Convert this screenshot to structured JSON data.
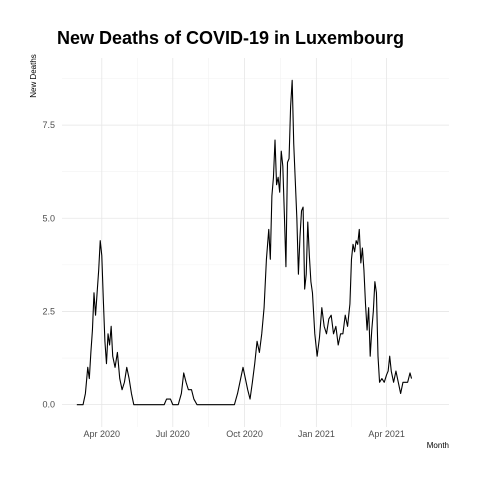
{
  "chart_data": {
    "type": "line",
    "title": "New Deaths of COVID-19 in Luxembourg",
    "xlabel": "Month",
    "ylabel": "New Deaths",
    "xlim": [
      "2020-02-10",
      "2021-06-20"
    ],
    "ylim": [
      -0.6,
      9.3
    ],
    "grid": true,
    "y_ticks": [
      {
        "value": 0.0,
        "label": "0.0"
      },
      {
        "value": 2.5,
        "label": "2.5"
      },
      {
        "value": 5.0,
        "label": "5.0"
      },
      {
        "value": 7.5,
        "label": "7.5"
      }
    ],
    "x_ticks": [
      {
        "date": "2020-04-01",
        "label": "Apr 2020"
      },
      {
        "date": "2020-07-01",
        "label": "Jul 2020"
      },
      {
        "date": "2020-10-01",
        "label": "Oct 2020"
      },
      {
        "date": "2021-01-01",
        "label": "Jan 2021"
      },
      {
        "date": "2021-04-01",
        "label": "Apr 2021"
      }
    ],
    "series": [
      {
        "points": [
          [
            "2020-02-29",
            0
          ],
          [
            "2020-03-08",
            0
          ],
          [
            "2020-03-11",
            0.3
          ],
          [
            "2020-03-14",
            1.0
          ],
          [
            "2020-03-16",
            0.7
          ],
          [
            "2020-03-18",
            1.4
          ],
          [
            "2020-03-20",
            2.0
          ],
          [
            "2020-03-22",
            3.0
          ],
          [
            "2020-03-24",
            2.4
          ],
          [
            "2020-03-26",
            3.0
          ],
          [
            "2020-03-28",
            3.6
          ],
          [
            "2020-03-30",
            4.4
          ],
          [
            "2020-04-01",
            4.0
          ],
          [
            "2020-04-03",
            2.8
          ],
          [
            "2020-04-05",
            1.7
          ],
          [
            "2020-04-07",
            1.1
          ],
          [
            "2020-04-09",
            1.9
          ],
          [
            "2020-04-11",
            1.6
          ],
          [
            "2020-04-13",
            2.1
          ],
          [
            "2020-04-15",
            1.3
          ],
          [
            "2020-04-18",
            1.0
          ],
          [
            "2020-04-21",
            1.4
          ],
          [
            "2020-04-24",
            0.7
          ],
          [
            "2020-04-27",
            0.4
          ],
          [
            "2020-04-30",
            0.6
          ],
          [
            "2020-05-03",
            1.0
          ],
          [
            "2020-05-06",
            0.7
          ],
          [
            "2020-05-09",
            0.3
          ],
          [
            "2020-05-12",
            0.0
          ],
          [
            "2020-05-25",
            0
          ],
          [
            "2020-06-10",
            0
          ],
          [
            "2020-06-20",
            0
          ],
          [
            "2020-06-23",
            0.15
          ],
          [
            "2020-06-28",
            0.15
          ],
          [
            "2020-07-01",
            0
          ],
          [
            "2020-07-08",
            0
          ],
          [
            "2020-07-12",
            0.3
          ],
          [
            "2020-07-15",
            0.85
          ],
          [
            "2020-07-18",
            0.6
          ],
          [
            "2020-07-21",
            0.4
          ],
          [
            "2020-07-25",
            0.4
          ],
          [
            "2020-07-28",
            0.15
          ],
          [
            "2020-08-01",
            0
          ],
          [
            "2020-08-20",
            0
          ],
          [
            "2020-09-10",
            0
          ],
          [
            "2020-09-18",
            0
          ],
          [
            "2020-09-22",
            0.3
          ],
          [
            "2020-09-26",
            0.7
          ],
          [
            "2020-09-29",
            1.0
          ],
          [
            "2020-10-02",
            0.7
          ],
          [
            "2020-10-05",
            0.4
          ],
          [
            "2020-10-08",
            0.15
          ],
          [
            "2020-10-11",
            0.6
          ],
          [
            "2020-10-14",
            1.1
          ],
          [
            "2020-10-17",
            1.7
          ],
          [
            "2020-10-20",
            1.4
          ],
          [
            "2020-10-23",
            1.9
          ],
          [
            "2020-10-26",
            2.6
          ],
          [
            "2020-10-29",
            3.9
          ],
          [
            "2020-11-01",
            4.7
          ],
          [
            "2020-11-03",
            3.9
          ],
          [
            "2020-11-05",
            5.6
          ],
          [
            "2020-11-07",
            6.1
          ],
          [
            "2020-11-09",
            7.1
          ],
          [
            "2020-11-11",
            5.9
          ],
          [
            "2020-11-13",
            6.1
          ],
          [
            "2020-11-15",
            5.7
          ],
          [
            "2020-11-17",
            6.8
          ],
          [
            "2020-11-19",
            6.4
          ],
          [
            "2020-11-21",
            5.1
          ],
          [
            "2020-11-23",
            3.7
          ],
          [
            "2020-11-25",
            6.5
          ],
          [
            "2020-11-27",
            6.6
          ],
          [
            "2020-11-29",
            8.0
          ],
          [
            "2020-12-01",
            8.7
          ],
          [
            "2020-12-03",
            7.0
          ],
          [
            "2020-12-05",
            6.0
          ],
          [
            "2020-12-07",
            5.0
          ],
          [
            "2020-12-09",
            3.5
          ],
          [
            "2020-12-11",
            4.5
          ],
          [
            "2020-12-13",
            5.2
          ],
          [
            "2020-12-15",
            5.3
          ],
          [
            "2020-12-17",
            3.1
          ],
          [
            "2020-12-19",
            3.5
          ],
          [
            "2020-12-21",
            4.9
          ],
          [
            "2020-12-23",
            4.0
          ],
          [
            "2020-12-25",
            3.3
          ],
          [
            "2020-12-27",
            3.0
          ],
          [
            "2020-12-30",
            1.9
          ],
          [
            "2021-01-02",
            1.3
          ],
          [
            "2021-01-05",
            1.8
          ],
          [
            "2021-01-08",
            2.6
          ],
          [
            "2021-01-11",
            2.1
          ],
          [
            "2021-01-14",
            1.9
          ],
          [
            "2021-01-17",
            2.3
          ],
          [
            "2021-01-20",
            2.4
          ],
          [
            "2021-01-23",
            1.9
          ],
          [
            "2021-01-26",
            2.1
          ],
          [
            "2021-01-29",
            1.6
          ],
          [
            "2021-02-01",
            1.9
          ],
          [
            "2021-02-04",
            1.9
          ],
          [
            "2021-02-07",
            2.4
          ],
          [
            "2021-02-10",
            2.1
          ],
          [
            "2021-02-13",
            2.7
          ],
          [
            "2021-02-15",
            3.9
          ],
          [
            "2021-02-17",
            4.3
          ],
          [
            "2021-02-19",
            4.1
          ],
          [
            "2021-02-21",
            4.4
          ],
          [
            "2021-02-23",
            4.3
          ],
          [
            "2021-02-25",
            4.7
          ],
          [
            "2021-02-27",
            3.8
          ],
          [
            "2021-03-01",
            4.2
          ],
          [
            "2021-03-03",
            3.6
          ],
          [
            "2021-03-05",
            2.7
          ],
          [
            "2021-03-07",
            2.0
          ],
          [
            "2021-03-09",
            2.6
          ],
          [
            "2021-03-11",
            1.3
          ],
          [
            "2021-03-13",
            2.0
          ],
          [
            "2021-03-15",
            2.5
          ],
          [
            "2021-03-17",
            3.3
          ],
          [
            "2021-03-19",
            3.0
          ],
          [
            "2021-03-21",
            1.3
          ],
          [
            "2021-03-23",
            0.6
          ],
          [
            "2021-03-26",
            0.7
          ],
          [
            "2021-03-29",
            0.6
          ],
          [
            "2021-04-01",
            0.8
          ],
          [
            "2021-04-03",
            0.9
          ],
          [
            "2021-04-05",
            1.3
          ],
          [
            "2021-04-07",
            0.9
          ],
          [
            "2021-04-10",
            0.6
          ],
          [
            "2021-04-13",
            0.9
          ],
          [
            "2021-04-16",
            0.6
          ],
          [
            "2021-04-19",
            0.3
          ],
          [
            "2021-04-22",
            0.6
          ],
          [
            "2021-04-25",
            0.6
          ],
          [
            "2021-04-28",
            0.6
          ],
          [
            "2021-05-01",
            0.85
          ],
          [
            "2021-05-03",
            0.7
          ]
        ]
      }
    ]
  }
}
